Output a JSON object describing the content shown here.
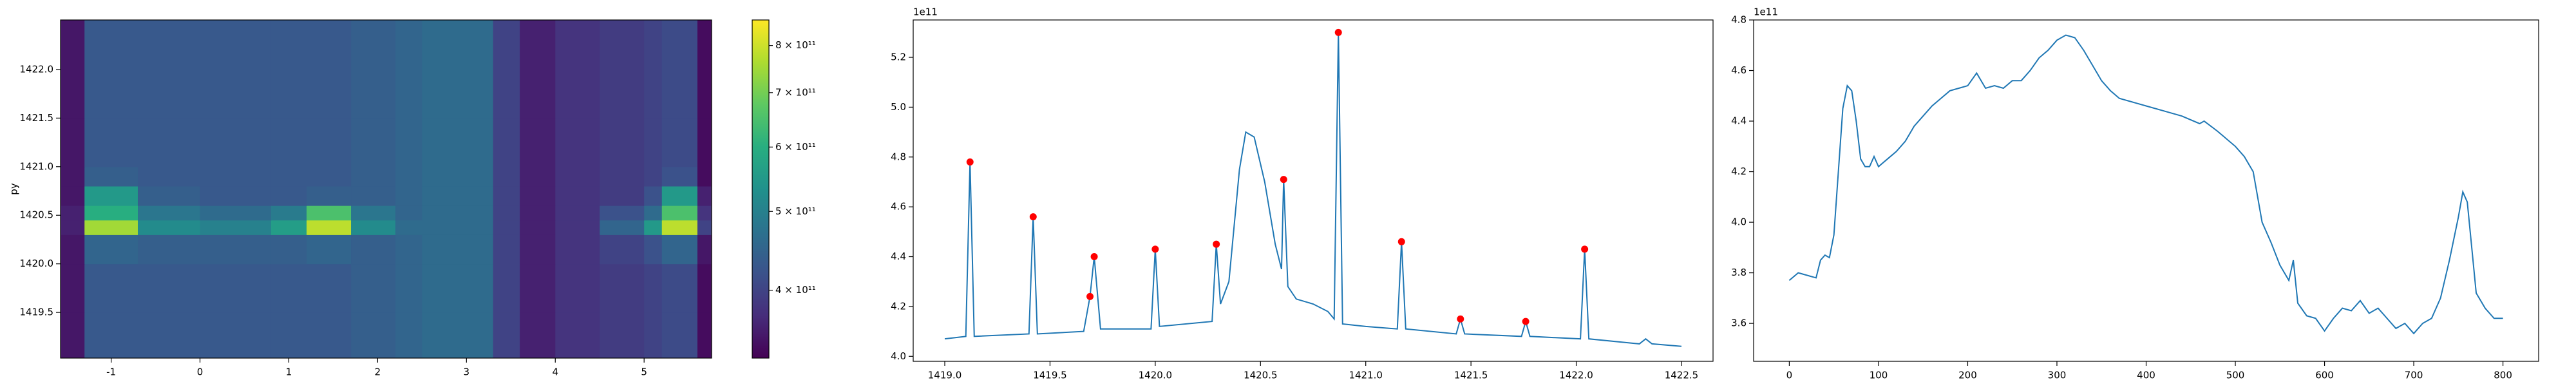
{
  "chart_data": [
    {
      "type": "heatmap",
      "y_label": "py",
      "x_edges": [
        -1.57,
        -1.3,
        -0.7,
        0,
        0.8,
        1.2,
        1.7,
        2.2,
        2.5,
        3.3,
        3.6,
        4.0,
        4.5,
        5.0,
        5.2,
        5.6,
        5.76
      ],
      "y_edges": [
        1419.03,
        1419.5,
        1420.0,
        1420.3,
        1420.45,
        1420.6,
        1420.8,
        1421.0,
        1421.5,
        1422.0,
        1422.51
      ],
      "z": [
        [
          3.5,
          4.3,
          4.3,
          4.3,
          4.3,
          4.3,
          4.4,
          4.5,
          4.6,
          4.0,
          3.6,
          3.8,
          3.9,
          4.0,
          4.1,
          3.4
        ],
        [
          3.5,
          4.3,
          4.3,
          4.3,
          4.3,
          4.3,
          4.4,
          4.5,
          4.6,
          4.0,
          3.6,
          3.8,
          3.9,
          4.0,
          4.1,
          3.4
        ],
        [
          3.5,
          4.5,
          4.4,
          4.4,
          4.4,
          4.5,
          4.4,
          4.5,
          4.6,
          4.0,
          3.6,
          3.8,
          4.0,
          4.2,
          4.5,
          3.5
        ],
        [
          3.6,
          7.5,
          5.2,
          5.0,
          5.6,
          7.8,
          5.2,
          4.6,
          4.6,
          4.0,
          3.6,
          3.8,
          4.5,
          5.5,
          7.8,
          4.0
        ],
        [
          3.6,
          6.0,
          4.8,
          4.6,
          4.9,
          6.5,
          4.8,
          4.5,
          4.6,
          4.0,
          3.6,
          3.8,
          4.2,
          4.6,
          6.5,
          3.8
        ],
        [
          3.5,
          5.5,
          4.4,
          4.3,
          4.3,
          4.4,
          4.4,
          4.5,
          4.6,
          4.0,
          3.6,
          3.8,
          3.9,
          4.2,
          5.5,
          3.6
        ],
        [
          3.5,
          4.4,
          4.3,
          4.3,
          4.3,
          4.3,
          4.4,
          4.5,
          4.6,
          4.0,
          3.6,
          3.8,
          3.9,
          4.0,
          4.2,
          3.4
        ],
        [
          3.5,
          4.3,
          4.3,
          4.3,
          4.3,
          4.3,
          4.4,
          4.5,
          4.6,
          4.0,
          3.6,
          3.8,
          3.9,
          4.0,
          4.1,
          3.4
        ],
        [
          3.5,
          4.3,
          4.3,
          4.3,
          4.3,
          4.3,
          4.4,
          4.5,
          4.6,
          4.0,
          3.6,
          3.8,
          3.9,
          4.0,
          4.1,
          3.4
        ],
        [
          3.5,
          4.3,
          4.3,
          4.3,
          4.3,
          4.3,
          4.4,
          4.5,
          4.6,
          4.0,
          3.6,
          3.8,
          3.9,
          4.0,
          4.1,
          3.4
        ]
      ],
      "xlim": [
        -1.57,
        5.76
      ],
      "ylim": [
        1419.03,
        1422.51
      ],
      "xticks": [
        -1,
        0,
        1,
        2,
        3,
        4,
        5
      ],
      "yticks": [
        1419.5,
        {
          "value": 1420,
          "label": "1420.0"
        },
        1420.5,
        {
          "value": 1421,
          "label": "1421.0"
        },
        1421.5,
        {
          "value": 1422,
          "label": "1422.0"
        }
      ],
      "colormap": [
        "#440154",
        "#472d7b",
        "#3b528b",
        "#2c728e",
        "#21918c",
        "#28ae80",
        "#5ec962",
        "#addc30",
        "#fde725"
      ],
      "clim": [
        3.3,
        8.6
      ],
      "color_log_scale": true,
      "cticks": [
        {
          "value": 4,
          "label": "4 × 10¹¹"
        },
        {
          "value": 5,
          "label": "5 × 10¹¹"
        },
        {
          "value": 6,
          "label": "6 × 10¹¹"
        },
        {
          "value": 7,
          "label": "7 × 10¹¹"
        },
        {
          "value": 8,
          "label": "8 × 10¹¹"
        }
      ]
    },
    {
      "type": "line",
      "offset_label": "1e11",
      "xlim": [
        1418.85,
        1422.65
      ],
      "ylim": [
        3.98,
        5.35
      ],
      "xticks": [
        {
          "value": 1419,
          "label": "1419.0"
        },
        1419.5,
        {
          "value": 1420,
          "label": "1420.0"
        },
        1420.5,
        {
          "value": 1421,
          "label": "1421.0"
        },
        1421.5,
        {
          "value": 1422,
          "label": "1422.0"
        },
        1422.5
      ],
      "yticks": [
        {
          "value": 4,
          "label": "4.0"
        },
        4.2,
        4.4,
        4.6,
        4.8,
        {
          "value": 5,
          "label": "5.0"
        },
        5.2
      ],
      "series": [
        {
          "color": "#1f77b4",
          "x": [
            1419.0,
            1419.1,
            1419.12,
            1419.14,
            1419.4,
            1419.42,
            1419.44,
            1419.66,
            1419.69,
            1419.71,
            1419.74,
            1419.98,
            1420.0,
            1420.02,
            1420.27,
            1420.29,
            1420.31,
            1420.35,
            1420.4,
            1420.43,
            1420.47,
            1420.52,
            1420.57,
            1420.6,
            1420.61,
            1420.63,
            1420.67,
            1420.75,
            1420.82,
            1420.85,
            1420.87,
            1420.89,
            1421.0,
            1421.15,
            1421.17,
            1421.19,
            1421.43,
            1421.45,
            1421.47,
            1421.74,
            1421.76,
            1421.78,
            1422.02,
            1422.04,
            1422.06,
            1422.3,
            1422.33,
            1422.36,
            1422.5
          ],
          "values": [
            4.07,
            4.08,
            4.78,
            4.08,
            4.09,
            4.56,
            4.09,
            4.1,
            4.24,
            4.4,
            4.11,
            4.11,
            4.43,
            4.12,
            4.14,
            4.45,
            4.21,
            4.3,
            4.75,
            4.9,
            4.88,
            4.7,
            4.45,
            4.35,
            4.71,
            4.28,
            4.23,
            4.21,
            4.18,
            4.15,
            5.3,
            4.13,
            4.12,
            4.11,
            4.46,
            4.11,
            4.09,
            4.15,
            4.09,
            4.08,
            4.14,
            4.08,
            4.07,
            4.43,
            4.07,
            4.05,
            4.07,
            4.05,
            4.04
          ]
        },
        {
          "color": "#ff0000",
          "marker": "dot",
          "x": [
            1419.12,
            1419.42,
            1419.69,
            1419.71,
            1420.0,
            1420.29,
            1420.61,
            1420.87,
            1421.17,
            1421.45,
            1421.76,
            1422.04
          ],
          "values": [
            4.78,
            4.56,
            4.24,
            4.4,
            4.43,
            4.45,
            4.71,
            5.3,
            4.46,
            4.15,
            4.14,
            4.43
          ]
        }
      ]
    },
    {
      "type": "line",
      "offset_label": "1e11",
      "xlim": [
        -40,
        840
      ],
      "ylim": [
        3.45,
        4.8
      ],
      "xticks": [
        0,
        100,
        200,
        300,
        400,
        500,
        600,
        700,
        800
      ],
      "yticks": [
        3.6,
        3.8,
        {
          "value": 4,
          "label": "4.0"
        },
        4.2,
        4.4,
        4.6,
        4.8
      ],
      "series": [
        {
          "color": "#1f77b4",
          "x": [
            0,
            10,
            20,
            30,
            35,
            40,
            45,
            50,
            55,
            60,
            65,
            70,
            75,
            80,
            85,
            90,
            95,
            100,
            110,
            120,
            130,
            140,
            150,
            160,
            170,
            180,
            190,
            200,
            210,
            220,
            230,
            240,
            250,
            260,
            270,
            280,
            290,
            300,
            310,
            320,
            330,
            340,
            350,
            360,
            370,
            380,
            390,
            400,
            420,
            440,
            460,
            465,
            480,
            500,
            510,
            520,
            530,
            540,
            550,
            560,
            565,
            570,
            580,
            590,
            600,
            610,
            620,
            630,
            640,
            650,
            660,
            670,
            680,
            690,
            700,
            710,
            720,
            730,
            740,
            750,
            755,
            760,
            765,
            770,
            780,
            790,
            800
          ],
          "values": [
            3.77,
            3.8,
            3.79,
            3.78,
            3.85,
            3.87,
            3.86,
            3.95,
            4.2,
            4.45,
            4.54,
            4.52,
            4.4,
            4.25,
            4.22,
            4.22,
            4.26,
            4.22,
            4.25,
            4.28,
            4.32,
            4.38,
            4.42,
            4.46,
            4.49,
            4.52,
            4.53,
            4.54,
            4.59,
            4.53,
            4.54,
            4.53,
            4.56,
            4.56,
            4.6,
            4.65,
            4.68,
            4.72,
            4.74,
            4.73,
            4.68,
            4.62,
            4.56,
            4.52,
            4.49,
            4.48,
            4.47,
            4.46,
            4.44,
            4.42,
            4.39,
            4.4,
            4.36,
            4.3,
            4.26,
            4.2,
            4.0,
            3.92,
            3.83,
            3.77,
            3.85,
            3.68,
            3.63,
            3.62,
            3.57,
            3.62,
            3.66,
            3.65,
            3.69,
            3.64,
            3.66,
            3.62,
            3.58,
            3.6,
            3.56,
            3.6,
            3.62,
            3.7,
            3.85,
            4.02,
            4.12,
            4.08,
            3.9,
            3.72,
            3.66,
            3.62,
            3.62
          ]
        }
      ]
    }
  ]
}
